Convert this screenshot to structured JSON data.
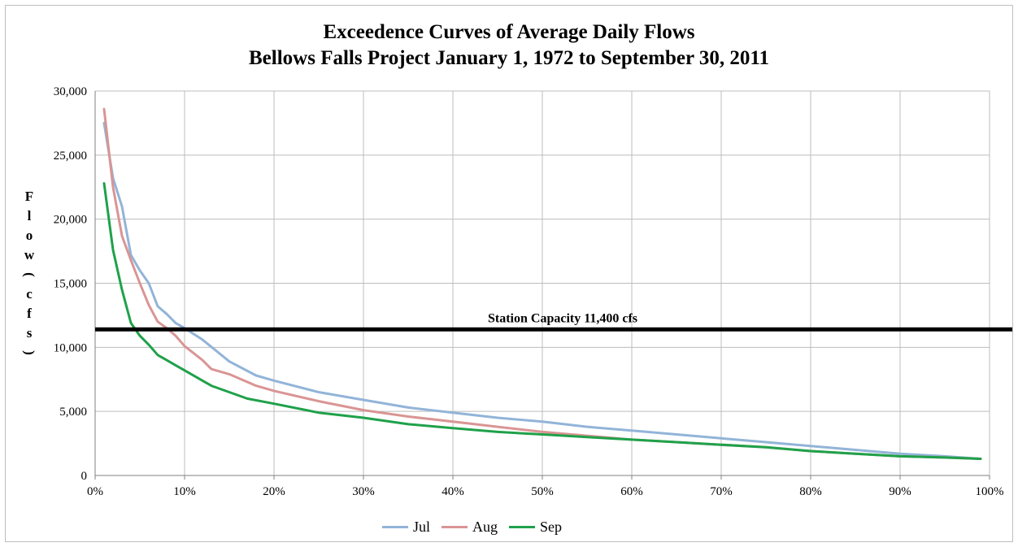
{
  "chart_data": {
    "type": "line",
    "title": "Exceedence Curves of Average Daily Flows",
    "subtitle": "Bellows Falls Project January 1, 1972 to September 30, 2011",
    "ylabel": "Flow (cfs)",
    "ylabel_chars": [
      "F",
      "l",
      "o",
      "w",
      "(",
      "c",
      "f",
      "s",
      ")"
    ],
    "xlabel": "",
    "ylim": [
      0,
      30000
    ],
    "xlim": [
      0,
      100
    ],
    "yticks": [
      "0",
      "5,000",
      "10,000",
      "15,000",
      "20,000",
      "25,000",
      "30,000"
    ],
    "xticks": [
      "0%",
      "10%",
      "20%",
      "30%",
      "40%",
      "50%",
      "60%",
      "70%",
      "80%",
      "90%",
      "100%"
    ],
    "grid": true,
    "legend_position": "bottom",
    "reference_line": {
      "label": "Station Capacity 11,400 cfs",
      "value": 11400,
      "color": "#000000"
    },
    "series": [
      {
        "name": "Jul",
        "color": "#92b4d8",
        "x": [
          1,
          2,
          3,
          4,
          5,
          6,
          7,
          8,
          9,
          10,
          12,
          15,
          18,
          20,
          25,
          30,
          35,
          40,
          45,
          50,
          55,
          60,
          65,
          70,
          75,
          80,
          85,
          90,
          95,
          99
        ],
        "y": [
          27500,
          23200,
          21000,
          17200,
          16000,
          15000,
          13200,
          12600,
          11900,
          11500,
          10600,
          8900,
          7800,
          7400,
          6500,
          5900,
          5300,
          4900,
          4500,
          4200,
          3800,
          3500,
          3200,
          2900,
          2600,
          2300,
          2000,
          1700,
          1500,
          1300
        ]
      },
      {
        "name": "Aug",
        "color": "#d99594",
        "x": [
          1,
          2,
          3,
          4,
          5,
          6,
          7,
          8,
          9,
          10,
          12,
          13,
          15,
          18,
          20,
          25,
          30,
          35,
          40,
          45,
          50,
          55,
          60,
          65,
          70,
          75,
          80,
          85,
          90,
          95,
          99
        ],
        "y": [
          28600,
          22500,
          18700,
          16800,
          15000,
          13300,
          12000,
          11500,
          10900,
          10100,
          9000,
          8300,
          7900,
          7000,
          6600,
          5800,
          5100,
          4600,
          4200,
          3800,
          3400,
          3100,
          2800,
          2600,
          2400,
          2200,
          1900,
          1700,
          1500,
          1400,
          1300
        ]
      },
      {
        "name": "Sep",
        "color": "#1fa14a",
        "x": [
          1,
          2,
          3,
          4,
          5,
          6,
          7,
          8,
          9,
          10,
          13,
          15,
          17,
          20,
          25,
          30,
          35,
          40,
          45,
          50,
          55,
          60,
          65,
          70,
          75,
          80,
          85,
          90,
          95,
          99
        ],
        "y": [
          22800,
          17600,
          14500,
          11900,
          10900,
          10200,
          9400,
          9000,
          8600,
          8200,
          7000,
          6500,
          6000,
          5600,
          4900,
          4500,
          4000,
          3700,
          3400,
          3200,
          3000,
          2800,
          2600,
          2400,
          2200,
          1900,
          1700,
          1500,
          1400,
          1300
        ]
      }
    ]
  }
}
